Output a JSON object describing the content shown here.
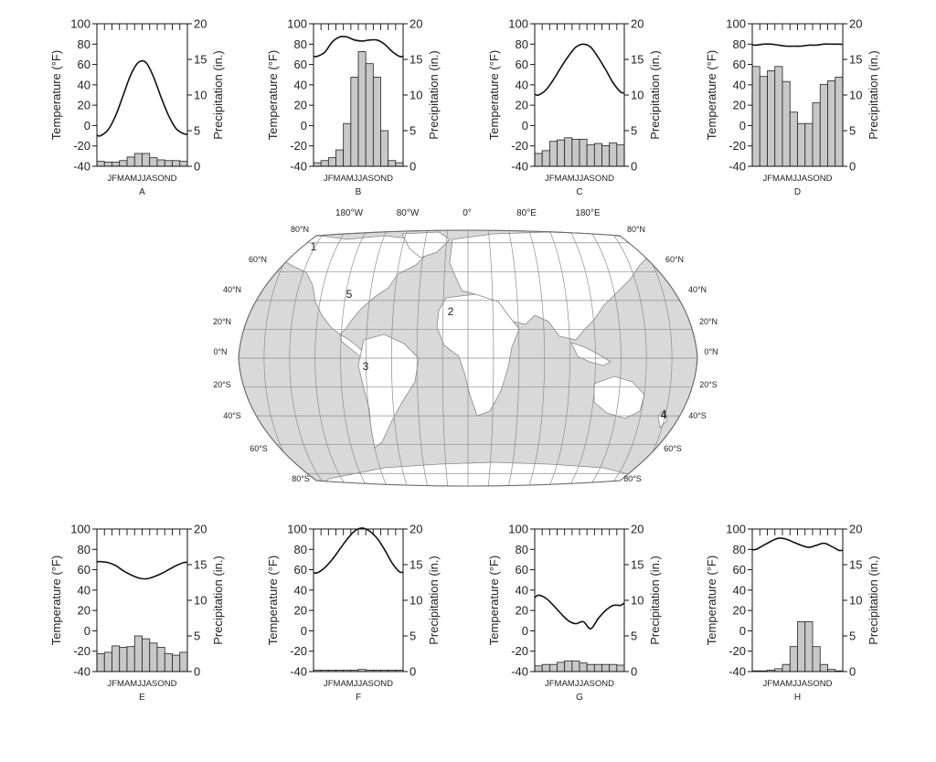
{
  "chart_data": [
    {
      "type": "bar",
      "label": "A",
      "categories": [
        "J",
        "F",
        "M",
        "A",
        "M",
        "J",
        "J",
        "A",
        "S",
        "O",
        "N",
        "D"
      ],
      "month_label": "JFMAMJJASOND",
      "ylabel_left": "Temperature (°F)",
      "ylabel_right": "Precipitation (in.)",
      "temp_range": [
        -40,
        100
      ],
      "temp_ticks": [
        100,
        80,
        60,
        40,
        20,
        0,
        -20,
        -40
      ],
      "precip_range": [
        0,
        20
      ],
      "precip_ticks": [
        20,
        15,
        10,
        5,
        0
      ],
      "temperature": [
        -10,
        -4,
        10,
        30,
        50,
        62,
        62,
        48,
        28,
        10,
        -3,
        -8
      ],
      "precipitation": [
        0.7,
        0.6,
        0.6,
        0.8,
        1.3,
        1.8,
        1.8,
        1.2,
        0.9,
        0.8,
        0.8,
        0.7
      ]
    },
    {
      "type": "bar",
      "label": "B",
      "categories": [
        "J",
        "F",
        "M",
        "A",
        "M",
        "J",
        "J",
        "A",
        "S",
        "O",
        "N",
        "D"
      ],
      "month_label": "JFMAMJJASOND",
      "ylabel_left": "Temperature (°F)",
      "ylabel_right": "Precipitation (in.)",
      "temp_range": [
        -40,
        100
      ],
      "temp_ticks": [
        100,
        80,
        60,
        40,
        20,
        0,
        -20,
        -40
      ],
      "precip_range": [
        0,
        20
      ],
      "precip_ticks": [
        20,
        15,
        10,
        5,
        0
      ],
      "temperature": [
        68,
        72,
        82,
        87,
        87,
        84,
        83,
        84,
        84,
        80,
        73,
        68
      ],
      "precipitation": [
        0.5,
        0.8,
        1.2,
        2.3,
        6.0,
        12.5,
        16.1,
        14.4,
        12.5,
        5.0,
        0.8,
        0.5
      ]
    },
    {
      "type": "bar",
      "label": "C",
      "categories": [
        "J",
        "F",
        "M",
        "A",
        "M",
        "J",
        "J",
        "A",
        "S",
        "O",
        "N",
        "D"
      ],
      "month_label": "JFMAMJJASOND",
      "ylabel_left": "Temperature (°F)",
      "ylabel_right": "Precipitation (in.)",
      "temp_range": [
        -40,
        100
      ],
      "temp_ticks": [
        100,
        80,
        60,
        40,
        20,
        0,
        -20,
        -40
      ],
      "precip_range": [
        0,
        20
      ],
      "precip_ticks": [
        20,
        15,
        10,
        5,
        0
      ],
      "temperature": [
        30,
        35,
        45,
        57,
        68,
        77,
        80,
        77,
        67,
        55,
        42,
        33
      ],
      "precipitation": [
        1.8,
        2.2,
        3.5,
        3.7,
        4.0,
        3.8,
        3.8,
        3.0,
        3.2,
        2.9,
        3.3,
        3.0
      ]
    },
    {
      "type": "bar",
      "label": "D",
      "categories": [
        "J",
        "F",
        "M",
        "A",
        "M",
        "J",
        "J",
        "A",
        "S",
        "O",
        "N",
        "D"
      ],
      "month_label": "JFMAMJJASOND",
      "ylabel_left": "Temperature (°F)",
      "ylabel_right": "Precipitation (in.)",
      "temp_range": [
        -40,
        100
      ],
      "temp_ticks": [
        100,
        80,
        60,
        40,
        20,
        0,
        -20,
        -40
      ],
      "precip_range": [
        0,
        20
      ],
      "precip_ticks": [
        20,
        15,
        10,
        5,
        0
      ],
      "temperature": [
        79,
        80,
        80,
        79,
        78,
        78,
        78,
        79,
        79,
        80,
        80,
        80
      ],
      "precipitation": [
        14.0,
        12.6,
        13.4,
        14.0,
        11.9,
        7.6,
        6.0,
        6.0,
        8.9,
        11.5,
        12.0,
        12.5
      ]
    },
    {
      "type": "bar",
      "label": "E",
      "categories": [
        "J",
        "F",
        "M",
        "A",
        "M",
        "J",
        "J",
        "A",
        "S",
        "O",
        "N",
        "D"
      ],
      "month_label": "JFMAMJJASOND",
      "ylabel_left": "Temperature (°F)",
      "ylabel_right": "Precipitation (in.)",
      "temp_range": [
        -40,
        100
      ],
      "temp_ticks": [
        100,
        80,
        60,
        40,
        20,
        0,
        -20,
        -40
      ],
      "precip_range": [
        0,
        20
      ],
      "precip_ticks": [
        20,
        15,
        10,
        5,
        0
      ],
      "temperature": [
        68,
        67,
        64,
        59,
        55,
        52,
        51,
        53,
        56,
        60,
        64,
        67
      ],
      "precipitation": [
        2.5,
        2.7,
        3.6,
        3.4,
        3.5,
        5.0,
        4.6,
        4.0,
        3.4,
        2.5,
        2.3,
        2.7
      ]
    },
    {
      "type": "bar",
      "label": "F",
      "categories": [
        "J",
        "F",
        "M",
        "A",
        "M",
        "J",
        "J",
        "A",
        "S",
        "O",
        "N",
        "D"
      ],
      "month_label": "JFMAMJJASOND",
      "ylabel_left": "Temperature (°F)",
      "ylabel_right": "Precipitation (in.)",
      "temp_range": [
        -40,
        100
      ],
      "temp_ticks": [
        100,
        80,
        60,
        40,
        20,
        0,
        -20,
        -40
      ],
      "precip_range": [
        0,
        20
      ],
      "precip_ticks": [
        20,
        15,
        10,
        5,
        0
      ],
      "temperature": [
        57,
        62,
        70,
        80,
        90,
        98,
        101,
        98,
        91,
        80,
        67,
        58
      ],
      "precipitation": [
        0.2,
        0.2,
        0.2,
        0.2,
        0.2,
        0.2,
        0.3,
        0.2,
        0.2,
        0.2,
        0.2,
        0.2
      ]
    },
    {
      "type": "bar",
      "label": "G",
      "categories": [
        "J",
        "F",
        "M",
        "A",
        "M",
        "J",
        "J",
        "A",
        "S",
        "O",
        "N",
        "D"
      ],
      "month_label": "JFMAMJJASOND",
      "ylabel_left": "Temperature (°F)",
      "ylabel_right": "Precipitation (in.)",
      "temp_range": [
        -40,
        100
      ],
      "temp_ticks": [
        100,
        80,
        60,
        40,
        20,
        0,
        -20,
        -40
      ],
      "precip_range": [
        0,
        20
      ],
      "precip_ticks": [
        20,
        15,
        10,
        5,
        0
      ],
      "temperature": [
        35,
        32,
        25,
        17,
        10,
        7,
        9,
        2,
        12,
        20,
        25,
        25
      ],
      "precipitation": [
        0.8,
        1.0,
        1.0,
        1.3,
        1.5,
        1.5,
        1.2,
        1.0,
        1.0,
        1.0,
        1.0,
        0.9
      ]
    },
    {
      "type": "bar",
      "label": "H",
      "categories": [
        "J",
        "F",
        "M",
        "A",
        "M",
        "J",
        "J",
        "A",
        "S",
        "O",
        "N",
        "D"
      ],
      "month_label": "JFMAMJJASOND",
      "ylabel_left": "Temperature (°F)",
      "ylabel_right": "Precipitation (in.)",
      "temp_range": [
        -40,
        100
      ],
      "temp_ticks": [
        100,
        80,
        60,
        40,
        20,
        0,
        -20,
        -40
      ],
      "precip_range": [
        0,
        20
      ],
      "precip_ticks": [
        20,
        15,
        10,
        5,
        0
      ],
      "temperature": [
        80,
        84,
        88,
        91,
        90,
        87,
        84,
        82,
        84,
        86,
        83,
        79
      ],
      "precipitation": [
        0.1,
        0.1,
        0.2,
        0.4,
        1.0,
        3.5,
        7.0,
        7.0,
        3.5,
        1.0,
        0.3,
        0.1
      ]
    }
  ],
  "map": {
    "top_longitudes": [
      "180°W",
      "80°W",
      "0°",
      "80°E",
      "180°E"
    ],
    "left_latitudes": [
      "80°N",
      "60°N",
      "40°N",
      "20°N",
      "0°N",
      "20°S",
      "40°S",
      "60°S",
      "80°S"
    ],
    "right_latitudes": [
      "80°N",
      "60°N",
      "40°N",
      "20°N",
      "0°N",
      "20°S",
      "40°S",
      "60°S",
      "80°S"
    ],
    "markers": [
      "1",
      "2",
      "3",
      "4",
      "5"
    ]
  },
  "colors": {
    "bar_fill": "#c8c8c8",
    "line": "#111111",
    "ocean": "#d9d9d9",
    "land": "#ffffff",
    "grid": "#8c8c8c"
  }
}
